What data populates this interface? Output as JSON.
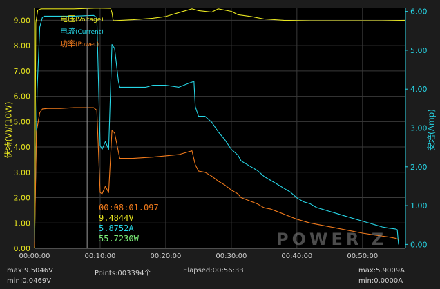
{
  "colors": {
    "background": "#1c1c1c",
    "plot_bg": "#000000",
    "grid": "#3a3a3a",
    "voltage": "#e8e620",
    "current": "#26d6e6",
    "power": "#f07a1c",
    "cursor": "#9a9a9a",
    "left_axis": "#e8e620",
    "right_axis": "#26d6e6"
  },
  "legend": {
    "voltage": "电压",
    "voltage_sub": "(Voltage)",
    "current": "电流",
    "current_sub": "(Current)",
    "power": "功率",
    "power_sub": "(Power)"
  },
  "readout": {
    "time": "00:08:01.097",
    "voltage": "9.4844V",
    "current": "5.8752A",
    "power": "55.7230W"
  },
  "watermark": "POWER Z",
  "footer": {
    "max_v": "max:9.5046V",
    "min_v": "min:0.0469V",
    "points": "Points:003394个",
    "elapsed": "Elapsed:00:56:33",
    "max_a": "max:5.9009A",
    "min_a": "min:0.0000A"
  },
  "chart_data": {
    "type": "line",
    "ylabel": "伏特(V)/(10W)",
    "ylabel_right": "安培(Amp)",
    "xlabel": "",
    "xlim_min": [
      0,
      56.55
    ],
    "ylim": [
      0,
      9.5
    ],
    "ylim_right": [
      -0.1,
      6.1
    ],
    "x_ticks": [
      "00:00:00",
      "00:10:00",
      "00:20:00",
      "00:30:00",
      "00:40:00",
      "00:50:00"
    ],
    "y_ticks": [
      "0.00",
      "1.00",
      "2.00",
      "3.00",
      "4.00",
      "5.00",
      "6.00",
      "7.00",
      "8.00",
      "9.00"
    ],
    "y_ticks_right": [
      "0.00",
      "1.00",
      "2.00",
      "3.00",
      "4.00",
      "5.00",
      "6.00"
    ],
    "grid": true,
    "cursor_x": 8.02,
    "series": [
      {
        "name": "电压(Voltage)",
        "axis": "left",
        "x": [
          0,
          0.2,
          0.5,
          1.0,
          1.5,
          3,
          6,
          9.5,
          11.6,
          11.8,
          12,
          15,
          18,
          20,
          22,
          24,
          25,
          27,
          28,
          30,
          31,
          33,
          35,
          38,
          42,
          46,
          50,
          53,
          56.5
        ],
        "y": [
          0,
          8.9,
          9.4,
          9.45,
          9.45,
          9.45,
          9.45,
          9.48,
          9.47,
          9.3,
          8.98,
          9.02,
          9.08,
          9.15,
          9.3,
          9.45,
          9.38,
          9.32,
          9.45,
          9.35,
          9.22,
          9.15,
          9.05,
          9.0,
          8.98,
          8.98,
          8.98,
          8.98,
          9.0
        ]
      },
      {
        "name": "电流(Current)",
        "axis": "right",
        "x": [
          0,
          0.4,
          0.8,
          1.2,
          1.5,
          3,
          6,
          9,
          9.5,
          10,
          10.3,
          10.8,
          11.3,
          11.8,
          12.2,
          12.8,
          13,
          15,
          17,
          18,
          20,
          22,
          23.5,
          24.3,
          24.5,
          25,
          26,
          27,
          28,
          29,
          30,
          31,
          31.5,
          32,
          33,
          34,
          35,
          36,
          37,
          38,
          39,
          40,
          41,
          42,
          43,
          44,
          45,
          46,
          47,
          48,
          49,
          50,
          51,
          52,
          53,
          54,
          55,
          55.3,
          55.5
        ],
        "y": [
          0.05,
          4.0,
          5.6,
          5.85,
          5.88,
          5.88,
          5.88,
          5.9,
          5.85,
          2.55,
          2.45,
          2.65,
          2.45,
          5.15,
          5.05,
          4.2,
          4.05,
          4.05,
          4.05,
          4.1,
          4.1,
          4.05,
          4.15,
          4.2,
          3.55,
          3.3,
          3.3,
          3.15,
          2.9,
          2.7,
          2.45,
          2.3,
          2.15,
          2.1,
          2.0,
          1.9,
          1.75,
          1.65,
          1.55,
          1.45,
          1.35,
          1.2,
          1.1,
          1.05,
          0.95,
          0.9,
          0.85,
          0.8,
          0.75,
          0.7,
          0.65,
          0.6,
          0.55,
          0.5,
          0.45,
          0.42,
          0.4,
          0.38,
          0.0
        ]
      },
      {
        "name": "功率(Power)",
        "axis": "left",
        "x": [
          0,
          0.3,
          0.8,
          1.2,
          2,
          4,
          6,
          9,
          9.5,
          10,
          10.3,
          10.8,
          11.3,
          11.8,
          12.2,
          12.8,
          13,
          15,
          18,
          20,
          22,
          24,
          24.5,
          25,
          26,
          27,
          28,
          29,
          30,
          31,
          31.5,
          32,
          33,
          34,
          35,
          36,
          37,
          38,
          40,
          42,
          44,
          46,
          48,
          50,
          52,
          54,
          55,
          55.5
        ],
        "y": [
          0.05,
          4.6,
          5.35,
          5.5,
          5.52,
          5.52,
          5.55,
          5.55,
          5.45,
          2.2,
          2.15,
          2.45,
          2.2,
          4.65,
          4.55,
          3.8,
          3.55,
          3.55,
          3.6,
          3.65,
          3.7,
          3.85,
          3.3,
          3.05,
          3.0,
          2.85,
          2.65,
          2.5,
          2.3,
          2.15,
          2.0,
          1.95,
          1.85,
          1.75,
          1.6,
          1.55,
          1.45,
          1.35,
          1.15,
          1.0,
          0.9,
          0.8,
          0.7,
          0.6,
          0.52,
          0.45,
          0.4,
          0.35
        ]
      }
    ]
  }
}
